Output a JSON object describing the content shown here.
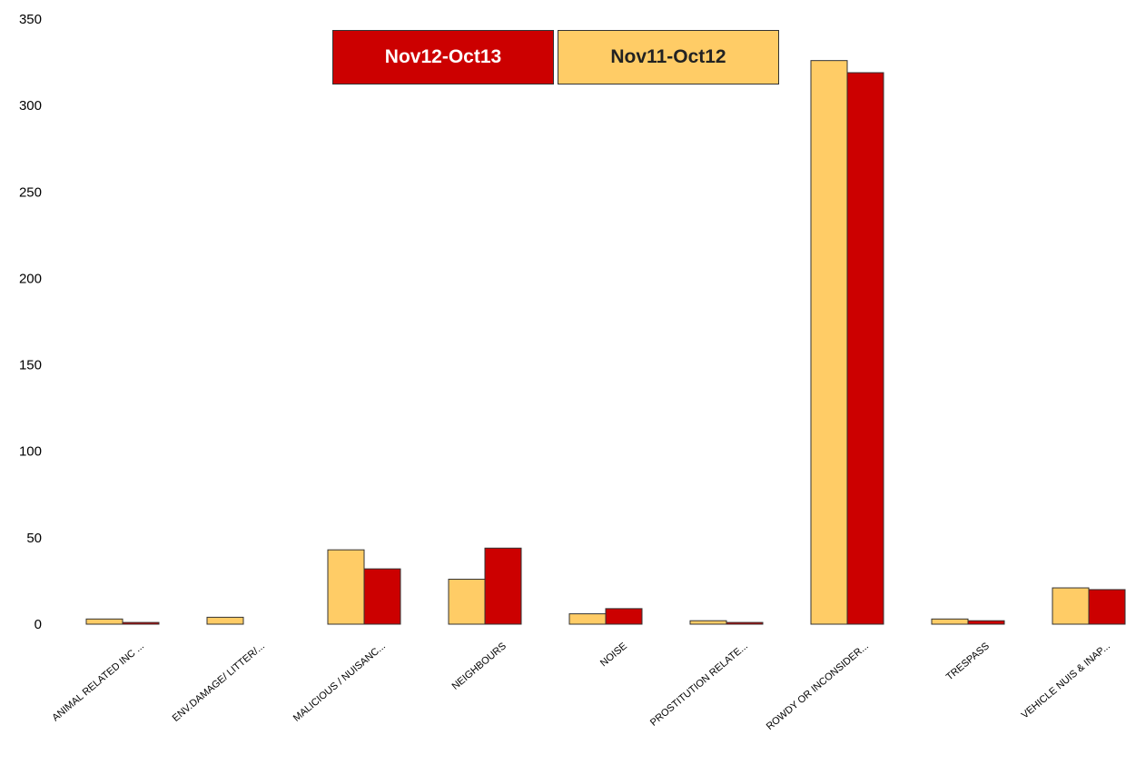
{
  "chart_data": {
    "type": "bar",
    "title": "",
    "xlabel": "",
    "ylabel": "",
    "ylim": [
      0,
      350
    ],
    "yticks": [
      0,
      50,
      100,
      150,
      200,
      250,
      300,
      350
    ],
    "grid": false,
    "legend_position": "top",
    "categories": [
      "ANIMAL RELATED INC ...",
      "ENV.DAMAGE/ LITTER/...",
      "MALICIOUS / NUISANC...",
      "NEIGHBOURS",
      "NOISE",
      "PROSTITUTION RELATE...",
      "ROWDY OR INCONSIDER...",
      "TRESPASS",
      "VEHICLE NUIS & INAP..."
    ],
    "series": [
      {
        "name": "Nov11-Oct12",
        "color": "#FFCC66",
        "values": [
          3,
          4,
          43,
          26,
          6,
          2,
          326,
          3,
          21
        ]
      },
      {
        "name": "Nov12-Oct13",
        "color": "#CC0000",
        "values": [
          1,
          0,
          32,
          44,
          9,
          1,
          319,
          2,
          20
        ]
      }
    ]
  },
  "legend": {
    "item_a": "Nov12-Oct13",
    "item_b": "Nov11-Oct12"
  }
}
